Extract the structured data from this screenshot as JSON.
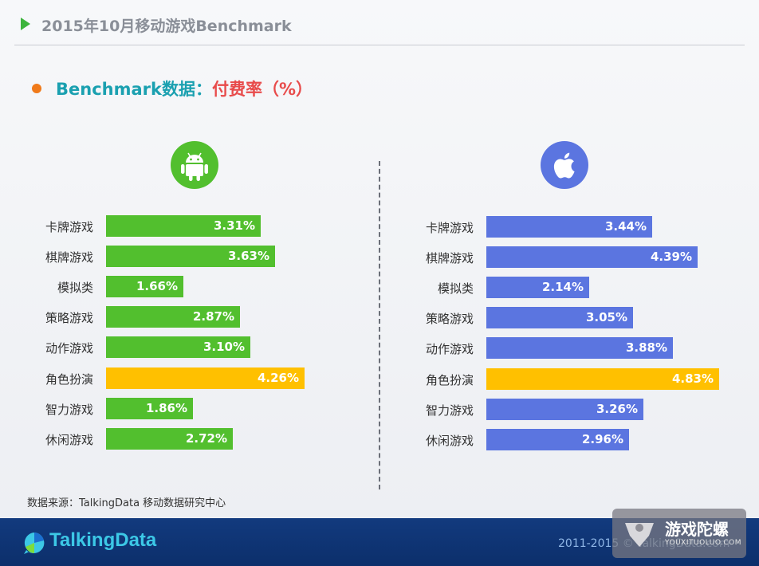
{
  "header": {
    "title": "2015年10月移动游戏Benchmark"
  },
  "subtitle": {
    "prefix": "Benchmark数据：",
    "metric": "付费率（%）"
  },
  "source": "数据来源：TalkingData 移动数据研究中心",
  "footer": {
    "brand": "TalkingData",
    "copyright": "2011-2015 © TalkingData.com"
  },
  "watermark": {
    "name": "游戏陀螺",
    "site": "YOUXITUOLUO.COM"
  },
  "colors": {
    "android_bar": "#52bf2e",
    "ios_bar": "#5b75e0",
    "highlight_bar": "#ffc000"
  },
  "chart_data": [
    {
      "type": "bar",
      "orientation": "horizontal",
      "platform_icon": "android-icon",
      "categories": [
        "卡牌游戏",
        "棋牌游戏",
        "模拟类",
        "策略游戏",
        "动作游戏",
        "角色扮演",
        "智力游戏",
        "休闲游戏"
      ],
      "values": [
        3.31,
        3.63,
        1.66,
        2.87,
        3.1,
        4.26,
        1.86,
        2.72
      ],
      "value_labels": [
        "3.31%",
        "3.63%",
        "1.66%",
        "2.87%",
        "3.10%",
        "4.26%",
        "1.86%",
        "2.72%"
      ],
      "highlight_index": 5,
      "unit": "%"
    },
    {
      "type": "bar",
      "orientation": "horizontal",
      "platform_icon": "apple-icon",
      "categories": [
        "卡牌游戏",
        "棋牌游戏",
        "模拟类",
        "策略游戏",
        "动作游戏",
        "角色扮演",
        "智力游戏",
        "休闲游戏"
      ],
      "values": [
        3.44,
        4.39,
        2.14,
        3.05,
        3.88,
        4.83,
        3.26,
        2.96
      ],
      "value_labels": [
        "3.44%",
        "4.39%",
        "2.14%",
        "3.05%",
        "3.88%",
        "4.83%",
        "3.26%",
        "2.96%"
      ],
      "highlight_index": 5,
      "unit": "%"
    }
  ]
}
